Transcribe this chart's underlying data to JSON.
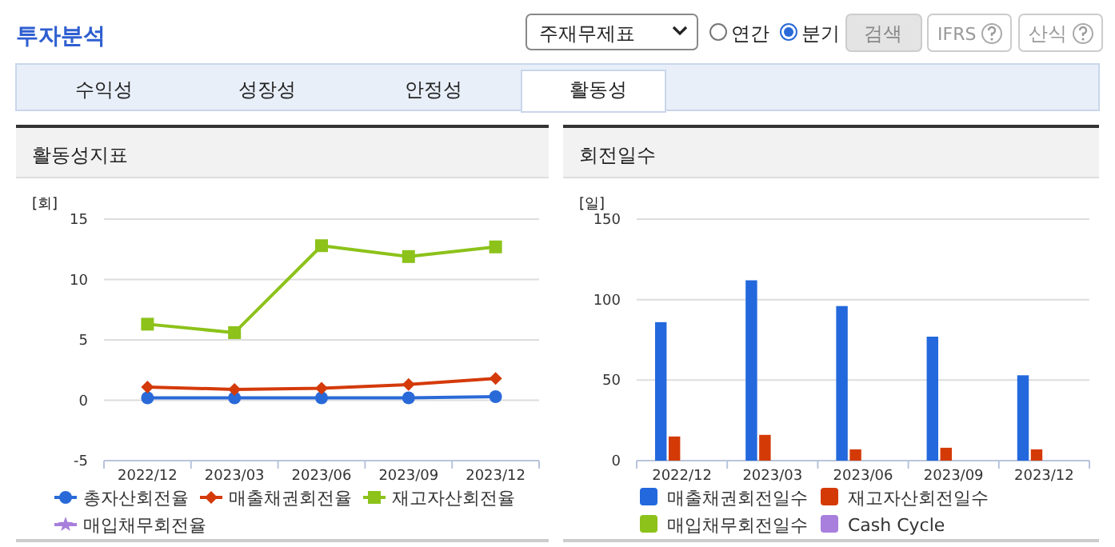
{
  "chart_data": [
    {
      "type": "other",
      "title": "투자분석",
      "annotations": [
        "주재무제표",
        "연간",
        "분기",
        "검색",
        "IFRS",
        "산식",
        "수익성",
        "성장성",
        "안정성",
        "활동성"
      ]
    },
    {
      "type": "line",
      "title": "활동성지표",
      "ylabel": "[회]",
      "categories": [
        "2022/12",
        "2023/03",
        "2023/06",
        "2023/09",
        "2023/12"
      ],
      "ylim": [
        -5,
        15
      ],
      "yticks": [
        -5,
        0,
        5,
        10,
        15
      ],
      "grid": "y",
      "legend": "bottom",
      "series": [
        {
          "name": "총자산회전율",
          "color": "#2a6ad8",
          "marker": "circle",
          "values": [
            0.2,
            0.2,
            0.2,
            0.2,
            0.3
          ]
        },
        {
          "name": "매출채권회전율",
          "color": "#d43a0a",
          "marker": "diamond",
          "values": [
            1.1,
            0.9,
            1.0,
            1.3,
            1.8
          ]
        },
        {
          "name": "재고자산회전율",
          "color": "#8cc21a",
          "marker": "square",
          "values": [
            6.3,
            5.6,
            12.8,
            11.9,
            12.7
          ]
        },
        {
          "name": "매입채무회전율",
          "color": "#a87fdc",
          "marker": "star",
          "values": [
            null,
            null,
            null,
            null,
            null
          ]
        }
      ]
    },
    {
      "type": "bar",
      "title": "회전일수",
      "ylabel": "[일]",
      "categories": [
        "2022/12",
        "2023/03",
        "2023/06",
        "2023/09",
        "2023/12"
      ],
      "ylim": [
        0,
        150
      ],
      "yticks": [
        0,
        50,
        100,
        150
      ],
      "grid": "y",
      "legend": "bottom",
      "series": [
        {
          "name": "매출채권회전일수",
          "color": "#2368dc",
          "values": [
            86,
            112,
            96,
            77,
            53
          ]
        },
        {
          "name": "재고자산회전일수",
          "color": "#d43a06",
          "values": [
            15,
            16,
            7,
            8,
            7
          ]
        },
        {
          "name": "매입채무회전일수",
          "color": "#8cc21a",
          "values": [
            null,
            null,
            null,
            null,
            null
          ]
        },
        {
          "name": "Cash Cycle",
          "color": "#a87fdc",
          "values": [
            null,
            null,
            null,
            null,
            null
          ]
        }
      ]
    }
  ]
}
